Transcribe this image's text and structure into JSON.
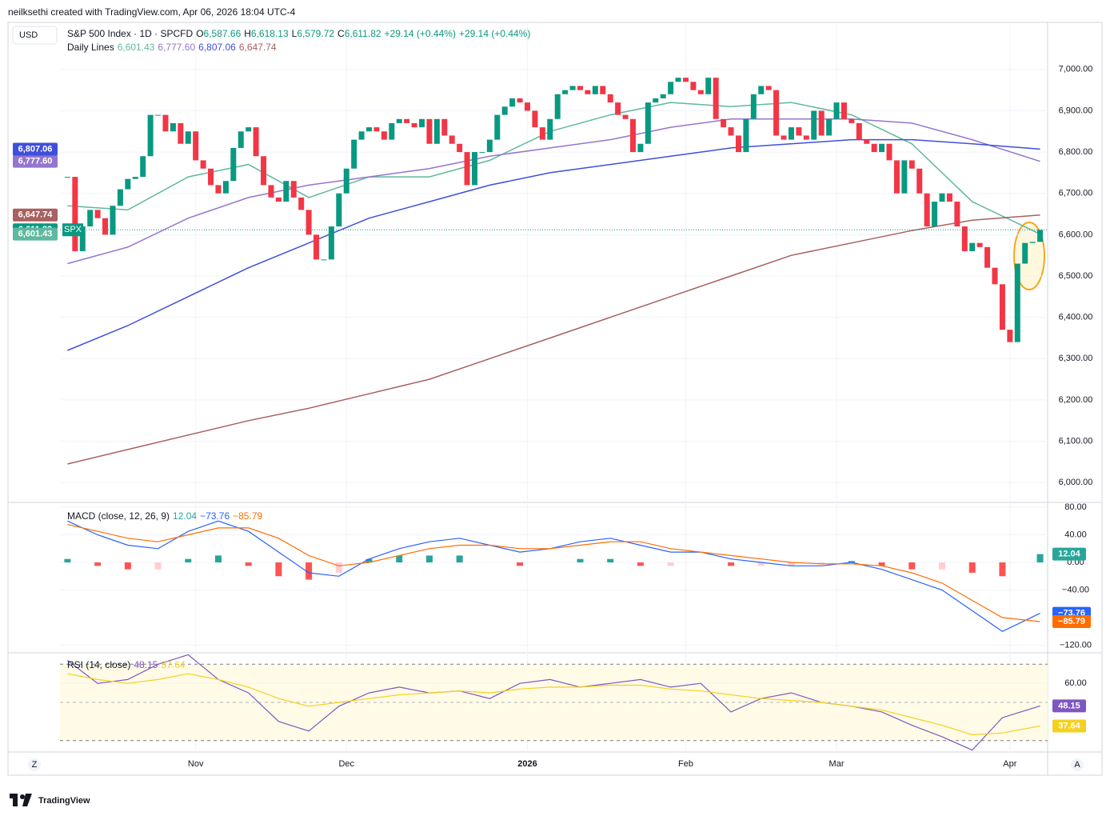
{
  "header": {
    "attribution": "neilksethi created with TradingView.com, Apr 06, 2026 18:04 UTC-4",
    "currency": "USD",
    "logo": "TradingView",
    "symbol_tag": "SPX",
    "scale_buttons": [
      "Z",
      "A"
    ]
  },
  "chart_data": [
    {
      "type": "candlestick",
      "title": "S&P 500 Index · 1D · SPCFD",
      "legend_values": [
        {
          "name": "O",
          "label": "6,587.66"
        },
        {
          "name": "H",
          "label": "6,618.13"
        },
        {
          "name": "L",
          "label": "6,579.72"
        },
        {
          "name": "C",
          "label": "6,611.82"
        },
        {
          "name": "",
          "label": "+29.14 (+0.44%)"
        },
        {
          "name": "",
          "label": "+29.14 (+0.44%)"
        }
      ],
      "close": [
        6740,
        6560,
        6620,
        6660,
        6640,
        6600,
        6670,
        6710,
        6735,
        6740,
        6790,
        6890,
        6890,
        6850,
        6870,
        6820,
        6850,
        6780,
        6760,
        6720,
        6700,
        6730,
        6810,
        6850,
        6860,
        6790,
        6720,
        6690,
        6680,
        6730,
        6690,
        6660,
        6600,
        6540,
        6540,
        6620,
        6700,
        6760,
        6830,
        6850,
        6860,
        6850,
        6830,
        6870,
        6880,
        6870,
        6860,
        6880,
        6820,
        6880,
        6840,
        6820,
        6800,
        6720,
        6800,
        6800,
        6830,
        6890,
        6910,
        6930,
        6920,
        6900,
        6860,
        6830,
        6880,
        6940,
        6950,
        6960,
        6950,
        6940,
        6960,
        6940,
        6920,
        6890,
        6880,
        6800,
        6820,
        6920,
        6930,
        6940,
        6970,
        6980,
        6970,
        6950,
        6940,
        6980,
        6880,
        6860,
        6840,
        6800,
        6880,
        6940,
        6960,
        6950,
        6840,
        6830,
        6860,
        6840,
        6830,
        6900,
        6840,
        6880,
        6920,
        6880,
        6870,
        6830,
        6820,
        6800,
        6820,
        6780,
        6700,
        6780,
        6760,
        6700,
        6620,
        6680,
        6700,
        6680,
        6620,
        6560,
        6580,
        6570,
        6520,
        6480,
        6370,
        6340,
        6530,
        6580,
        6582.68,
        6611.82
      ],
      "close_label": "6,611.82",
      "up_color": "#089981",
      "down_color": "#f23645",
      "indicator_title": "Daily Lines",
      "series": [
        {
          "color": "#5fb8a0",
          "x": [
            0,
            8,
            16,
            24,
            32,
            40,
            48,
            56,
            64,
            72,
            80,
            88,
            96,
            104,
            112,
            120,
            129
          ],
          "values": [
            6670,
            6660,
            6740,
            6770,
            6690,
            6740,
            6740,
            6780,
            6850,
            6890,
            6920,
            6910,
            6920,
            6890,
            6820,
            6680,
            6601.43
          ],
          "last_label": "6,601.43"
        },
        {
          "color": "#9575cd",
          "x": [
            0,
            8,
            16,
            24,
            32,
            40,
            48,
            56,
            64,
            72,
            80,
            88,
            96,
            104,
            112,
            120,
            129
          ],
          "values": [
            6530,
            6570,
            6640,
            6690,
            6720,
            6740,
            6760,
            6790,
            6810,
            6830,
            6860,
            6880,
            6880,
            6880,
            6870,
            6830,
            6777.6
          ],
          "last_label": "6,777.60"
        },
        {
          "color": "#3f4fdc",
          "x": [
            0,
            8,
            16,
            24,
            32,
            40,
            48,
            56,
            64,
            72,
            80,
            88,
            96,
            104,
            112,
            120,
            129
          ],
          "values": [
            6320,
            6380,
            6450,
            6520,
            6580,
            6640,
            6680,
            6720,
            6750,
            6770,
            6790,
            6810,
            6820,
            6830,
            6830,
            6820,
            6807.06
          ],
          "last_label": "6,807.06"
        },
        {
          "color": "#a86060",
          "x": [
            0,
            8,
            16,
            24,
            32,
            40,
            48,
            56,
            64,
            72,
            80,
            88,
            96,
            104,
            112,
            120,
            129
          ],
          "values": [
            6045,
            6080,
            6115,
            6150,
            6180,
            6215,
            6250,
            6300,
            6350,
            6400,
            6450,
            6500,
            6550,
            6580,
            6610,
            6635,
            6647.74
          ],
          "last_label": "6,647.74"
        }
      ],
      "xlim": [
        -1,
        130
      ],
      "ylim": [
        5952,
        7110
      ],
      "yticks": [
        {
          "value": 6000,
          "label": "6,000.00"
        },
        {
          "value": 6100,
          "label": "6,100.00"
        },
        {
          "value": 6200,
          "label": "6,200.00"
        },
        {
          "value": 6300,
          "label": "6,300.00"
        },
        {
          "value": 6400,
          "label": "6,400.00"
        },
        {
          "value": 6500,
          "label": "6,500.00"
        },
        {
          "value": 6600,
          "label": "6,600.00"
        },
        {
          "value": 6700,
          "label": "6,700.00"
        },
        {
          "value": 6800,
          "label": "6,800.00"
        },
        {
          "value": 6900,
          "label": "6,900.00"
        },
        {
          "value": 7000,
          "label": "7,000.00"
        }
      ],
      "xticks": [
        {
          "value": 17,
          "label": "Nov"
        },
        {
          "value": 37,
          "label": "Dec"
        },
        {
          "value": 61,
          "label": "2026"
        },
        {
          "value": 82,
          "label": "Feb"
        },
        {
          "value": 102,
          "label": "Mar"
        },
        {
          "value": 125,
          "label": "Apr"
        }
      ]
    },
    {
      "type": "macd",
      "title": "MACD (close, 12, 26, 9)",
      "x": [
        0,
        4,
        8,
        12,
        16,
        20,
        24,
        28,
        32,
        36,
        40,
        44,
        48,
        52,
        56,
        60,
        64,
        68,
        72,
        76,
        80,
        84,
        88,
        92,
        96,
        100,
        104,
        108,
        112,
        116,
        120,
        124,
        129
      ],
      "histogram": {
        "values": [
          5,
          -5,
          -10,
          -10,
          5,
          10,
          -5,
          -20,
          -25,
          -15,
          5,
          10,
          10,
          10,
          0,
          -5,
          0,
          5,
          5,
          -5,
          -5,
          0,
          -5,
          -5,
          -5,
          -3,
          2,
          -5,
          -10,
          -10,
          -15,
          -20,
          12.04
        ],
        "last_label": "12.04",
        "color": "#26a69a"
      },
      "series": [
        {
          "color": "#2962ff",
          "values": [
            60,
            40,
            25,
            20,
            45,
            60,
            45,
            15,
            -15,
            -20,
            5,
            20,
            30,
            35,
            25,
            15,
            20,
            30,
            35,
            25,
            15,
            15,
            5,
            0,
            -5,
            -5,
            0,
            -10,
            -25,
            -40,
            -70,
            -100,
            -73.76
          ],
          "last_label": "−73.76"
        },
        {
          "color": "#ff6d00",
          "values": [
            55,
            45,
            35,
            30,
            40,
            50,
            50,
            35,
            10,
            -5,
            0,
            10,
            20,
            25,
            25,
            20,
            20,
            25,
            30,
            30,
            20,
            15,
            10,
            5,
            0,
            -2,
            -2,
            -5,
            -15,
            -30,
            -55,
            -80,
            -85.79
          ],
          "last_label": "−85.79"
        }
      ],
      "ylim": [
        -131,
        87
      ],
      "yticks": [
        {
          "value": 80,
          "label": "80.00"
        },
        {
          "value": 40,
          "label": "40.00"
        },
        {
          "value": 0,
          "label": "0.00"
        },
        {
          "value": -40,
          "label": "−40.00"
        },
        {
          "value": -120,
          "label": "−120.00"
        }
      ]
    },
    {
      "type": "rsi",
      "title": "RSI (14, close)",
      "x": [
        0,
        4,
        8,
        12,
        16,
        20,
        24,
        28,
        32,
        36,
        40,
        44,
        48,
        52,
        56,
        60,
        64,
        68,
        72,
        76,
        80,
        84,
        88,
        92,
        96,
        100,
        104,
        108,
        112,
        116,
        120,
        124,
        129
      ],
      "series": [
        {
          "color": "#7e57c2",
          "values": [
            72,
            60,
            62,
            70,
            75,
            62,
            55,
            40,
            35,
            48,
            55,
            58,
            55,
            56,
            52,
            60,
            62,
            58,
            60,
            62,
            58,
            60,
            45,
            52,
            55,
            50,
            48,
            45,
            38,
            32,
            25,
            42,
            48.15
          ],
          "last_label": "48.15"
        },
        {
          "color": "#f5d020",
          "values": [
            65,
            62,
            60,
            62,
            65,
            62,
            58,
            52,
            48,
            50,
            52,
            54,
            55,
            56,
            55,
            57,
            58,
            58,
            59,
            59,
            57,
            56,
            54,
            52,
            51,
            50,
            48,
            46,
            42,
            38,
            33,
            34,
            37.64
          ],
          "last_label": "37.64"
        }
      ],
      "bands": [
        30,
        70
      ],
      "ylim": [
        24,
        76
      ],
      "yticks": [
        {
          "value": 60,
          "label": "60.00"
        }
      ]
    }
  ]
}
